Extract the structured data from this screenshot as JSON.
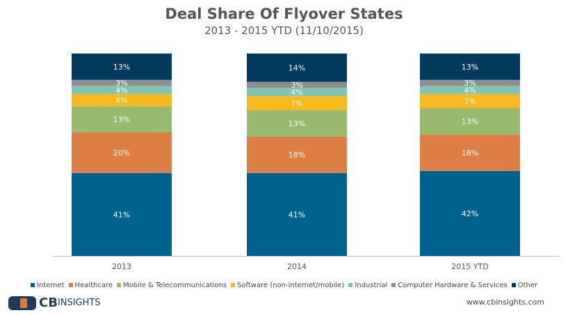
{
  "chart_data": {
    "type": "bar",
    "stacked": true,
    "title": "Deal Share Of Flyover States",
    "subtitle": "2013 - 2015 YTD (11/10/2015)",
    "categories": [
      "2013",
      "2014",
      "2015 YTD"
    ],
    "ylim": [
      0,
      100
    ],
    "grid": false,
    "legend_position": "bottom",
    "series": [
      {
        "name": "Internet",
        "color": "#00628f",
        "values": [
          41,
          41,
          42
        ]
      },
      {
        "name": "Healthcare",
        "color": "#dd7f45",
        "values": [
          20,
          18,
          18
        ]
      },
      {
        "name": "Mobile & Telecommunications",
        "color": "#97ba6f",
        "values": [
          13,
          13,
          13
        ]
      },
      {
        "name": "Software (non-internet/mobile)",
        "color": "#f9b81c",
        "values": [
          6,
          7,
          7
        ]
      },
      {
        "name": "Industrial",
        "color": "#7fc4b4",
        "values": [
          4,
          4,
          4
        ]
      },
      {
        "name": "Computer Hardware & Services",
        "color": "#8f8f8f",
        "values": [
          3,
          3,
          3
        ]
      },
      {
        "name": "Other",
        "color": "#003a5c",
        "values": [
          13,
          14,
          13
        ]
      }
    ]
  },
  "footer": {
    "logo_text": "CB INSIGHTS",
    "logo_cb": "CB",
    "logo_insights": "INSIGHTS",
    "website": "www.cbinsights.com"
  }
}
